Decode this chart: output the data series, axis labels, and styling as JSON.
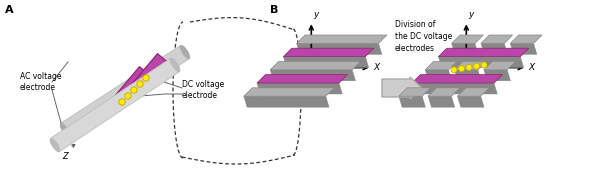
{
  "fig_width": 5.89,
  "fig_height": 1.71,
  "bg_color": "#ffffff",
  "label_A": "A",
  "label_B": "B",
  "ac_label": "AC voltage\nelectrode",
  "dc_label": "DC voltage\nelectrode",
  "division_label": "Division of\nthe DC voltage\nelectrodes",
  "purple": "#bb44aa",
  "purple_dark": "#882266",
  "gray_light": "#c0c0c0",
  "gray_mid": "#aaaaaa",
  "gray_dark": "#888888",
  "gray_slab": "#b0b0b0",
  "gray_slab_side": "#888888",
  "yellow": "#ffee00",
  "yellow_out": "#ccaa00",
  "black": "#000000",
  "dashed": "#333333"
}
